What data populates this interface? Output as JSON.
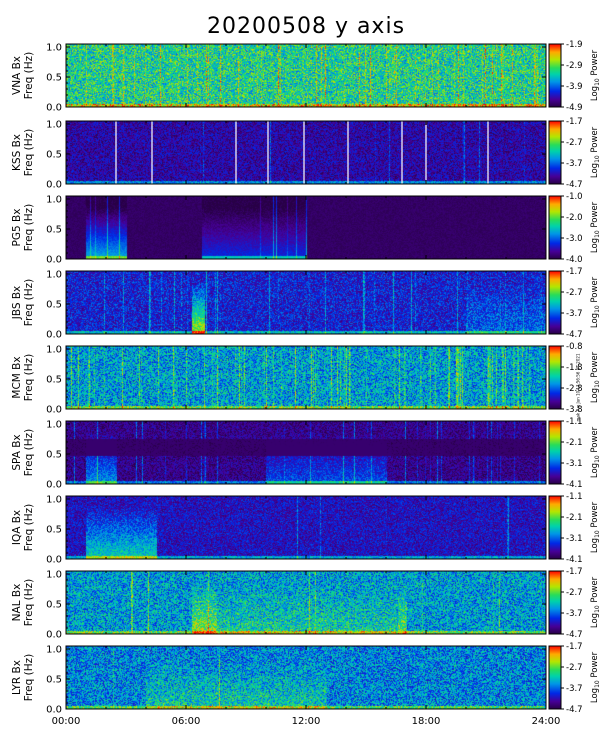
{
  "title": "20200508 y axis",
  "side_note": "mak Tue Jun 10 13:56:56 UT 2021",
  "colorbar_label_prefix": "Log",
  "colorbar_label_sub": "10",
  "colorbar_label_suffix": " Power",
  "chart_data": {
    "type": "heatmap",
    "panel_count": 9,
    "x_axis": {
      "ticks": [
        "00:00",
        "06:00",
        "12:00",
        "18:00",
        "24:00"
      ],
      "range_hours": [
        0,
        24
      ]
    },
    "y_axis": {
      "label_line2": "Freq (Hz)",
      "ticks": [
        "0.0",
        "0.5",
        "1.0"
      ],
      "range_hz": [
        0,
        1.05
      ]
    },
    "panels": [
      {
        "station": "VNA Bx",
        "cbar_ticks": [
          "-1.9",
          "-2.9",
          "-3.9",
          "-4.9"
        ],
        "cbar_range": [
          -4.9,
          -1.9
        ],
        "base_level": 0.55,
        "noise": 0.22,
        "stripe_density": 0.5,
        "white_lines_h": []
      },
      {
        "station": "KSS Bx",
        "cbar_ticks": [
          "-1.7",
          "-2.7",
          "-3.7",
          "-4.7"
        ],
        "cbar_range": [
          -4.7,
          -1.7
        ],
        "base_level": 0.14,
        "noise": 0.12,
        "stripe_density": 0.03,
        "white_lines_h": [
          2.5,
          4.3,
          8.5,
          10.1,
          11.9,
          14.1,
          16.8,
          18.0,
          21.1
        ]
      },
      {
        "station": "PG5 Bx",
        "cbar_ticks": [
          "-1.0",
          "-2.0",
          "-3.0",
          "-4.0"
        ],
        "cbar_range": [
          -4.0,
          -1.0
        ],
        "base_level": 0.0,
        "noise": 0.04,
        "stripe_density": 0.1,
        "white_lines_h": []
      },
      {
        "station": "JBS Bx",
        "cbar_ticks": [
          "-1.7",
          "-2.7",
          "-3.7",
          "-4.7"
        ],
        "cbar_range": [
          -4.7,
          -1.7
        ],
        "base_level": 0.22,
        "noise": 0.14,
        "stripe_density": 0.15,
        "white_lines_h": []
      },
      {
        "station": "MCM Bx",
        "cbar_ticks": [
          "-0.8",
          "-1.8",
          "-2.8",
          "-3.8"
        ],
        "cbar_range": [
          -3.8,
          -0.8
        ],
        "base_level": 0.42,
        "noise": 0.2,
        "stripe_density": 0.6,
        "white_lines_h": []
      },
      {
        "station": "SPA Bx",
        "cbar_ticks": [
          "-1.1",
          "-2.1",
          "-3.1",
          "-4.1"
        ],
        "cbar_range": [
          -4.1,
          -1.1
        ],
        "base_level": 0.1,
        "noise": 0.1,
        "stripe_density": 0.2,
        "white_lines_h": []
      },
      {
        "station": "IQA Bx",
        "cbar_ticks": [
          "-1.1",
          "-2.1",
          "-3.1",
          "-4.1"
        ],
        "cbar_range": [
          -4.1,
          -1.1
        ],
        "base_level": 0.18,
        "noise": 0.12,
        "stripe_density": 0.08,
        "white_lines_h": []
      },
      {
        "station": "NAL Bx",
        "cbar_ticks": [
          "-1.7",
          "-2.7",
          "-3.7",
          "-4.7"
        ],
        "cbar_range": [
          -4.7,
          -1.7
        ],
        "base_level": 0.42,
        "noise": 0.2,
        "stripe_density": 0.12,
        "white_lines_h": []
      },
      {
        "station": "LYR Bx",
        "cbar_ticks": [
          "-1.7",
          "-2.7",
          "-3.7",
          "-4.7"
        ],
        "cbar_range": [
          -4.7,
          -1.7
        ],
        "base_level": 0.38,
        "noise": 0.2,
        "stripe_density": 0.06,
        "white_lines_h": []
      }
    ]
  }
}
